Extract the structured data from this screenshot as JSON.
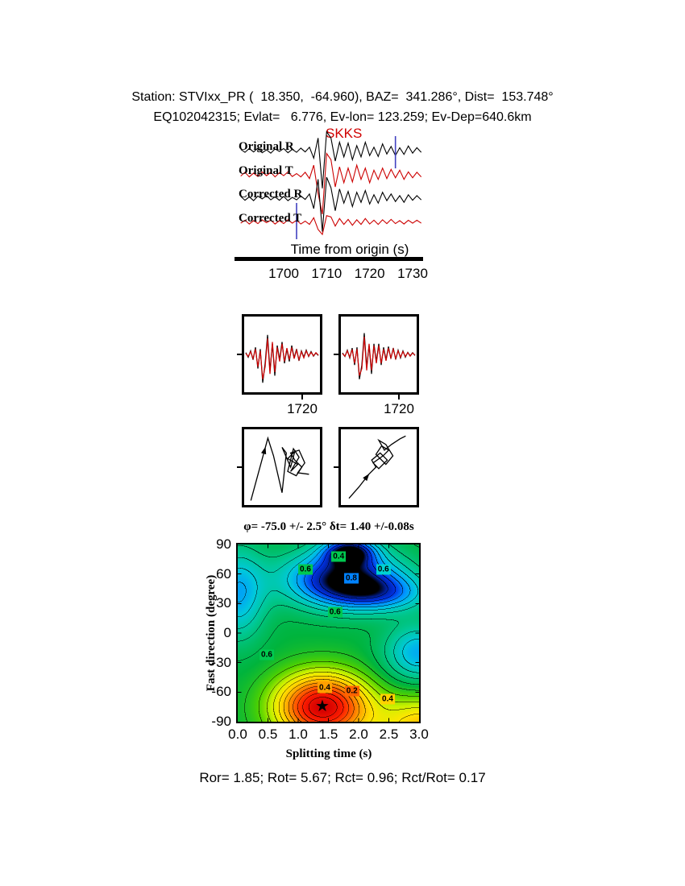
{
  "header": {
    "line1": "Station: STVIxx_PR (  18.350,  -64.960), BAZ=  341.286°, Dist=  153.748°",
    "line2": "EQ102042315; Evlat=   6.776, Ev-lon= 123.259; Ev-Dep=640.6km"
  },
  "footer": {
    "stats": "Ror= 1.85; Rot= 5.67; Rct= 0.96; Rct/Rot= 0.17"
  },
  "chart_data": [
    {
      "id": "seismograms",
      "type": "line",
      "phase_label": "SKKS",
      "phase_color": "#d00000",
      "xlabel": "Time from origin (s)",
      "xticks": [
        "1700",
        "1710",
        "1720",
        "1730"
      ],
      "xtick_values": [
        1700,
        1710,
        1720,
        1730
      ],
      "t_start": 1690,
      "t_step": 1.0,
      "window": {
        "start": 1703,
        "end": 1726,
        "color": "#4040c0"
      },
      "traces": [
        {
          "label": "Original R",
          "color": "#000000",
          "samples": [
            0.03,
            -0.04,
            0.05,
            -0.03,
            0.06,
            -0.05,
            0.02,
            -0.06,
            0.04,
            -0.02,
            0.05,
            -0.05,
            0.03,
            -0.04,
            0.06,
            -0.03,
            0.08,
            -0.18,
            0.3,
            -0.9,
            0.45,
            0.3,
            -0.25,
            0.2,
            -0.15,
            0.18,
            -0.22,
            0.12,
            -0.15,
            0.2,
            -0.12,
            0.08,
            -0.14,
            0.16,
            -0.08,
            0.1,
            -0.12,
            0.07,
            -0.09,
            0.11,
            -0.06,
            0.07,
            -0.04
          ]
        },
        {
          "label": "Original T",
          "color": "#cc0000",
          "samples": [
            -0.04,
            0.05,
            -0.06,
            0.03,
            -0.05,
            0.06,
            -0.03,
            0.05,
            -0.06,
            0.04,
            -0.03,
            0.06,
            -0.05,
            0.02,
            -0.06,
            0.05,
            -0.1,
            0.22,
            -0.45,
            -0.95,
            0.5,
            0.35,
            -0.3,
            0.18,
            -0.2,
            0.15,
            -0.18,
            0.22,
            -0.12,
            0.15,
            -0.2,
            0.1,
            -0.12,
            0.15,
            -0.1,
            0.12,
            -0.08,
            0.1,
            -0.12,
            0.06,
            -0.08,
            0.05,
            -0.06
          ]
        },
        {
          "label": "Corrected R",
          "color": "#000000",
          "samples": [
            0.04,
            -0.05,
            0.03,
            -0.06,
            0.05,
            -0.02,
            0.06,
            -0.04,
            0.03,
            -0.05,
            0.04,
            -0.06,
            0.02,
            -0.04,
            0.05,
            -0.03,
            0.1,
            -0.25,
            0.45,
            -0.8,
            0.5,
            0.25,
            -0.3,
            0.22,
            -0.12,
            0.16,
            -0.2,
            0.14,
            -0.1,
            0.18,
            -0.14,
            0.08,
            -0.12,
            0.14,
            -0.06,
            0.1,
            -0.08,
            0.06,
            -0.1,
            0.08,
            -0.05,
            0.06,
            -0.04
          ]
        },
        {
          "label": "Corrected T",
          "color": "#cc0000",
          "samples": [
            -0.03,
            0.04,
            -0.05,
            0.03,
            -0.04,
            0.05,
            -0.02,
            0.04,
            -0.05,
            0.03,
            -0.04,
            0.05,
            -0.03,
            0.04,
            -0.05,
            0.02,
            -0.06,
            0.1,
            -0.18,
            -0.3,
            0.15,
            0.12,
            -0.1,
            0.08,
            -0.06,
            0.06,
            -0.08,
            0.05,
            -0.06,
            0.08,
            -0.05,
            0.04,
            -0.06,
            0.05,
            -0.04,
            0.06,
            -0.04,
            0.03,
            -0.05,
            0.04,
            -0.03,
            0.04,
            -0.03
          ]
        }
      ]
    },
    {
      "id": "window-comparison",
      "type": "line",
      "panels": [
        {
          "tick_label": "1720",
          "series": [
            {
              "color": "#000000",
              "samples": [
                0.05,
                -0.08,
                0.1,
                -0.15,
                0.2,
                -0.4,
                0.15,
                -0.8,
                -0.25,
                0.55,
                -0.45,
                0.3,
                -0.6,
                0.25,
                -0.15,
                0.35,
                -0.25,
                0.15,
                -0.2,
                0.25,
                -0.1,
                0.15,
                -0.18,
                0.1,
                -0.08,
                0.12,
                -0.06,
                0.08,
                -0.05,
                0.04,
                -0.03
              ]
            },
            {
              "color": "#cc0000",
              "samples": [
                0.03,
                -0.06,
                0.08,
                -0.12,
                0.15,
                -0.35,
                0.1,
                -0.7,
                -0.35,
                0.45,
                -0.55,
                0.35,
                -0.5,
                0.2,
                -0.2,
                0.3,
                -0.2,
                0.18,
                -0.15,
                0.2,
                -0.12,
                0.12,
                -0.15,
                0.08,
                -0.1,
                0.1,
                -0.05,
                0.06,
                -0.04,
                0.05,
                -0.02
              ]
            }
          ]
        },
        {
          "tick_label": "1720",
          "series": [
            {
              "color": "#000000",
              "samples": [
                0.04,
                -0.06,
                0.12,
                -0.1,
                0.18,
                -0.3,
                0.2,
                -0.7,
                -0.3,
                0.6,
                -0.35,
                0.25,
                -0.55,
                0.3,
                -0.2,
                0.3,
                -0.3,
                0.2,
                -0.15,
                0.22,
                -0.12,
                0.18,
                -0.14,
                0.12,
                -0.1,
                0.1,
                -0.08,
                0.06,
                -0.04,
                0.05,
                -0.03
              ]
            },
            {
              "color": "#cc0000",
              "samples": [
                0.02,
                -0.05,
                0.1,
                -0.08,
                0.14,
                -0.25,
                0.15,
                -0.6,
                -0.4,
                0.5,
                -0.45,
                0.3,
                -0.45,
                0.25,
                -0.25,
                0.25,
                -0.25,
                0.15,
                -0.18,
                0.18,
                -0.1,
                0.15,
                -0.12,
                0.1,
                -0.08,
                0.08,
                -0.06,
                0.05,
                -0.05,
                0.04,
                -0.02
              ]
            }
          ]
        }
      ]
    },
    {
      "id": "particle-motion",
      "type": "scatter",
      "panels": [
        {
          "arrow_at": 0,
          "path": [
            [
              0.06,
              0.97
            ],
            [
              0.3,
              0.09
            ],
            [
              0.38,
              0.34
            ],
            [
              0.5,
              0.86
            ],
            [
              0.56,
              0.3
            ],
            [
              0.5,
              0.22
            ],
            [
              0.62,
              0.5
            ],
            [
              0.68,
              0.28
            ],
            [
              0.58,
              0.38
            ],
            [
              0.72,
              0.46
            ],
            [
              0.62,
              0.56
            ],
            [
              0.74,
              0.36
            ],
            [
              0.66,
              0.24
            ],
            [
              0.58,
              0.56
            ],
            [
              0.7,
              0.62
            ],
            [
              0.78,
              0.5
            ],
            [
              0.68,
              0.4
            ],
            [
              0.62,
              0.3
            ],
            [
              0.74,
              0.26
            ],
            [
              0.82,
              0.44
            ],
            [
              0.72,
              0.58
            ],
            [
              0.88,
              0.6
            ]
          ]
        },
        {
          "arrow_at": 1,
          "path": [
            [
              0.08,
              0.94
            ],
            [
              0.22,
              0.78
            ],
            [
              0.36,
              0.6
            ],
            [
              0.46,
              0.5
            ],
            [
              0.4,
              0.4
            ],
            [
              0.52,
              0.3
            ],
            [
              0.62,
              0.4
            ],
            [
              0.5,
              0.52
            ],
            [
              0.42,
              0.44
            ],
            [
              0.56,
              0.34
            ],
            [
              0.64,
              0.26
            ],
            [
              0.54,
              0.2
            ],
            [
              0.46,
              0.32
            ],
            [
              0.6,
              0.46
            ],
            [
              0.7,
              0.34
            ],
            [
              0.6,
              0.18
            ],
            [
              0.5,
              0.12
            ],
            [
              0.58,
              0.26
            ],
            [
              0.68,
              0.18
            ],
            [
              0.8,
              0.1
            ],
            [
              0.88,
              0.06
            ]
          ]
        }
      ]
    },
    {
      "id": "misfit-surface",
      "type": "heatmap",
      "title": "φ= -75.0 +/- 2.5° δt= 1.40 +/-0.08s",
      "xlabel": "Splitting time (s)",
      "ylabel": "Fast direction (degree)",
      "xticks": [
        "0.0",
        "0.5",
        "1.0",
        "1.5",
        "2.0",
        "2.5",
        "3.0"
      ],
      "yticks": [
        "90",
        "60",
        "30",
        "0",
        "-30",
        "-60",
        "-90"
      ],
      "xlim": [
        0,
        3
      ],
      "ylim": [
        -90,
        90
      ],
      "best_fit": {
        "phi": -75.0,
        "phi_err": 2.5,
        "dt": 1.4,
        "dt_err": 0.08
      },
      "contour_interval": 0.05,
      "surface": {
        "base": 0.58,
        "gaussians": [
          {
            "x": 1.4,
            "y": -75,
            "sx": 0.75,
            "sy": 33,
            "a": -0.58
          },
          {
            "x": 3.1,
            "y": -95,
            "sx": 0.8,
            "sy": 30,
            "a": -0.28
          },
          {
            "x": 1.75,
            "y": 55,
            "sx": 0.95,
            "sy": 28,
            "a": 0.42
          },
          {
            "x": 1.85,
            "y": 83,
            "sx": 0.42,
            "sy": 14,
            "a": 0.35
          },
          {
            "x": 2.4,
            "y": 40,
            "sx": 0.8,
            "sy": 18,
            "a": 0.18
          },
          {
            "x": 3.0,
            "y": -20,
            "sx": 0.55,
            "sy": 28,
            "a": 0.22
          },
          {
            "x": 0.0,
            "y": 40,
            "sx": 0.45,
            "sy": 45,
            "a": 0.22
          }
        ]
      },
      "colormap": [
        [
          0.0,
          "#d40000"
        ],
        [
          0.1,
          "#ff1e00"
        ],
        [
          0.2,
          "#ff6e00"
        ],
        [
          0.28,
          "#ffb400"
        ],
        [
          0.35,
          "#ffe600"
        ],
        [
          0.42,
          "#c8f000"
        ],
        [
          0.5,
          "#50d200"
        ],
        [
          0.58,
          "#00b43c"
        ],
        [
          0.68,
          "#00c896"
        ],
        [
          0.76,
          "#00c8dc"
        ],
        [
          0.83,
          "#0096ff"
        ],
        [
          0.9,
          "#0032e6"
        ],
        [
          0.96,
          "#001e96"
        ],
        [
          1.0,
          "#000000"
        ]
      ],
      "contour_labels": [
        {
          "text": "0.4",
          "dt": 1.67,
          "phi": 78,
          "bg": "#00c850"
        },
        {
          "text": "0.6",
          "dt": 1.12,
          "phi": 65,
          "bg": "#00c850"
        },
        {
          "text": "0.8",
          "dt": 1.88,
          "phi": 56,
          "bg": "#0082ff"
        },
        {
          "text": "0.6",
          "dt": 2.41,
          "phi": 65,
          "bg": "#00d2d2"
        },
        {
          "text": "0.6",
          "dt": 1.61,
          "phi": 21,
          "bg": "#00c850"
        },
        {
          "text": "0.6",
          "dt": 0.48,
          "phi": -22,
          "bg": "#00c850"
        },
        {
          "text": "0.4",
          "dt": 1.44,
          "phi": -56,
          "bg": "#ffa000"
        },
        {
          "text": "0.2",
          "dt": 1.89,
          "phi": -59,
          "bg": "#ff6400"
        },
        {
          "text": "0.4",
          "dt": 2.48,
          "phi": -67,
          "bg": "#ffd200"
        }
      ],
      "star_symbol": "★"
    }
  ]
}
